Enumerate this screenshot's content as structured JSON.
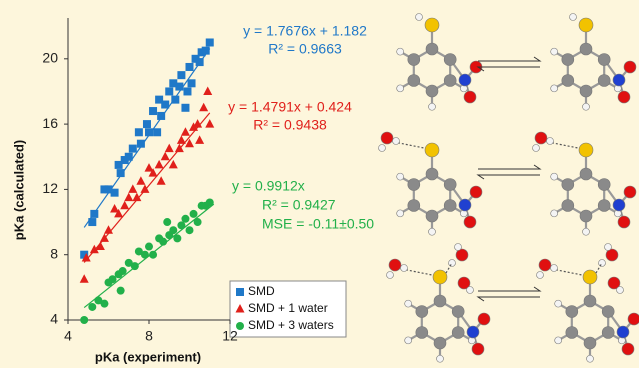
{
  "chart_data": {
    "type": "scatter",
    "x_label": "pKa (experiment)",
    "y_label": "pKa (calculated)",
    "xlim": [
      4,
      12
    ],
    "ylim": [
      4,
      22.5
    ],
    "xticks": [
      4,
      8,
      12
    ],
    "yticks": [
      4,
      8,
      12,
      16,
      20
    ],
    "series": [
      {
        "name": "SMD",
        "color": "#1f78c8",
        "marker": "square",
        "x": [
          4.8,
          5.2,
          5.3,
          5.8,
          6.0,
          6.3,
          6.5,
          6.6,
          6.8,
          7.0,
          7.2,
          7.5,
          7.6,
          7.9,
          8.0,
          8.2,
          8.4,
          8.5,
          8.6,
          8.8,
          9.0,
          9.2,
          9.3,
          9.5,
          9.6,
          9.8,
          9.9,
          10.0,
          10.1,
          10.3,
          10.5,
          10.6,
          10.8,
          11.0
        ],
        "values": [
          8.0,
          10.0,
          10.5,
          12.0,
          12.0,
          11.8,
          13.5,
          13.0,
          13.8,
          14.0,
          14.5,
          15.5,
          14.8,
          16.0,
          15.5,
          16.8,
          15.5,
          17.5,
          16.5,
          17.2,
          18.0,
          18.5,
          17.5,
          18.3,
          19.0,
          17.0,
          18.0,
          19.5,
          18.5,
          20.0,
          19.8,
          20.4,
          20.5,
          21.0
        ],
        "trendline": {
          "x": [
            4.8,
            11.0
          ],
          "y": [
            9.67,
            20.63
          ]
        }
      },
      {
        "name": "SMD + 1 water",
        "color": "#e0201b",
        "marker": "triangle",
        "x": [
          4.8,
          4.9,
          5.3,
          5.6,
          5.8,
          6.0,
          6.3,
          6.5,
          6.8,
          7.0,
          7.2,
          7.4,
          7.6,
          7.8,
          8.0,
          8.2,
          8.5,
          8.6,
          8.8,
          9.0,
          9.2,
          9.5,
          9.6,
          9.8,
          10.0,
          10.2,
          10.4,
          10.5,
          10.7,
          10.9,
          11.0
        ],
        "values": [
          6.5,
          7.8,
          8.3,
          8.5,
          9.0,
          9.5,
          10.8,
          10.5,
          11.0,
          11.5,
          12.0,
          11.5,
          12.5,
          12.0,
          13.3,
          13.0,
          13.5,
          12.5,
          14.0,
          14.5,
          13.5,
          14.5,
          15.0,
          15.5,
          14.8,
          15.8,
          16.0,
          15.0,
          17.0,
          18.0,
          16.0
        ],
        "trendline": {
          "x": [
            4.8,
            11.0
          ],
          "y": [
            7.52,
            16.69
          ]
        }
      },
      {
        "name": "SMD + 3 waters",
        "color": "#22b04a",
        "marker": "circle",
        "x": [
          4.8,
          5.2,
          5.5,
          5.8,
          6.0,
          6.2,
          6.5,
          6.6,
          6.7,
          7.0,
          7.3,
          7.5,
          7.8,
          8.0,
          8.2,
          8.5,
          8.7,
          8.9,
          9.0,
          9.2,
          9.4,
          9.6,
          9.8,
          10.0,
          10.2,
          10.4,
          10.6,
          10.8,
          11.0
        ],
        "values": [
          4.0,
          4.8,
          5.2,
          5.0,
          6.3,
          6.5,
          6.8,
          5.8,
          7.0,
          7.5,
          7.3,
          8.2,
          8.0,
          8.5,
          8.0,
          9.0,
          8.8,
          10.0,
          9.2,
          9.5,
          9.0,
          9.8,
          10.2,
          9.5,
          10.5,
          10.0,
          11.0,
          11.0,
          11.2
        ],
        "trendline": {
          "x": [
            4.8,
            11.2
          ],
          "y": [
            4.76,
            11.1
          ]
        }
      }
    ],
    "annotations": [
      {
        "color": "#1f78c8",
        "lines": [
          "y = 1.7676x + 1.182",
          "R² = 0.9663"
        ]
      },
      {
        "color": "#e0201b",
        "lines": [
          "y = 1.4791x + 0.424",
          "R² = 0.9438"
        ]
      },
      {
        "color": "#22b04a",
        "lines": [
          "y = 0.9912x",
          "R² = 0.9427",
          "MSE = -0.11±0.50"
        ]
      }
    ]
  }
}
